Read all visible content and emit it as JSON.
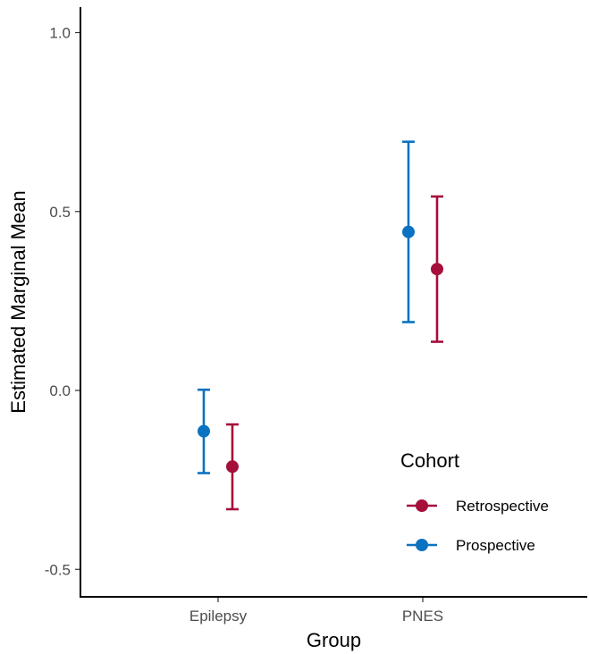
{
  "chart_data": {
    "type": "scatter",
    "subtype": "point-errorbar",
    "title": "",
    "xlabel": "Group",
    "ylabel": "Estimated Marginal Mean",
    "categories": [
      "Epilepsy",
      "PNES"
    ],
    "ylim": [
      -0.55,
      1.07
    ],
    "yticks": [
      -0.5,
      0.0,
      0.5,
      1.0
    ],
    "ytick_labels": [
      "-0.5",
      "0.0",
      "0.5",
      "1.0"
    ],
    "grid": false,
    "legend": {
      "title": "Cohort",
      "position": "right-bottom inside"
    },
    "series": [
      {
        "name": "Retrospective",
        "color": "#A50F3A",
        "points": [
          {
            "category": "Epilepsy",
            "y": -0.213,
            "lower": -0.332,
            "upper": -0.095
          },
          {
            "category": "PNES",
            "y": 0.339,
            "lower": 0.136,
            "upper": 0.542
          }
        ]
      },
      {
        "name": "Prospective",
        "color": "#0A72C0",
        "points": [
          {
            "category": "Epilepsy",
            "y": -0.114,
            "lower": -0.231,
            "upper": 0.002
          },
          {
            "category": "PNES",
            "y": 0.443,
            "lower": 0.191,
            "upper": 0.695
          }
        ]
      }
    ]
  }
}
